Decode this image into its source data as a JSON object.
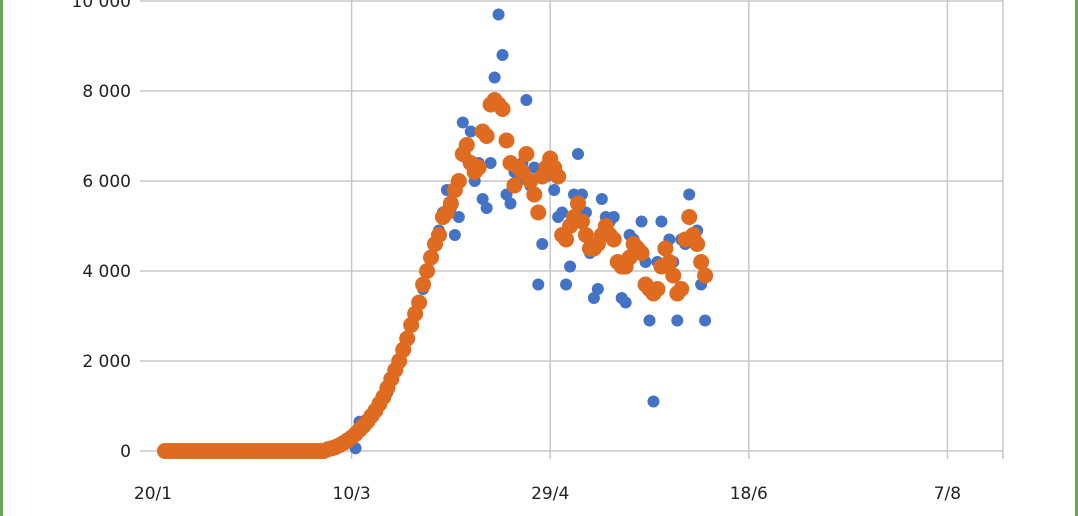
{
  "chart_data": {
    "type": "scatter",
    "x": [
      "23/1",
      "24/1",
      "25/1",
      "26/1",
      "27/1",
      "28/1",
      "29/1",
      "30/1",
      "31/1",
      "1/2",
      "2/2",
      "3/2",
      "4/2",
      "5/2",
      "6/2",
      "7/2",
      "8/2",
      "9/2",
      "10/2",
      "11/2",
      "12/2",
      "13/2",
      "14/2",
      "15/2",
      "16/2",
      "17/2",
      "18/2",
      "19/2",
      "20/2",
      "21/2",
      "22/2",
      "23/2",
      "24/2",
      "25/2",
      "26/2",
      "27/2",
      "28/2",
      "29/2",
      "1/3",
      "2/3",
      "3/3",
      "4/3",
      "5/3",
      "6/3",
      "7/3",
      "8/3",
      "9/3",
      "10/3",
      "11/3",
      "12/3",
      "13/3",
      "14/3",
      "15/3",
      "16/3",
      "17/3",
      "18/3",
      "19/3",
      "20/3",
      "21/3",
      "22/3",
      "23/3",
      "24/3",
      "25/3",
      "26/3",
      "27/3",
      "28/3",
      "29/3",
      "30/3",
      "31/3",
      "1/4",
      "2/4",
      "3/4",
      "4/4",
      "5/4",
      "6/4",
      "7/4",
      "8/4",
      "9/4",
      "10/4",
      "11/4",
      "12/4",
      "13/4",
      "14/4",
      "15/4",
      "16/4",
      "17/4",
      "18/4",
      "19/4",
      "20/4",
      "21/4",
      "22/4",
      "23/4",
      "24/4",
      "25/4",
      "26/4",
      "27/4",
      "28/4",
      "29/4",
      "30/4",
      "1/5",
      "2/5",
      "3/5",
      "4/5",
      "5/5",
      "6/5",
      "7/5",
      "8/5",
      "9/5",
      "10/5",
      "11/5",
      "12/5",
      "13/5",
      "14/5",
      "15/5",
      "16/5",
      "17/5",
      "18/5",
      "19/5",
      "20/5",
      "21/5",
      "22/5",
      "23/5",
      "24/5",
      "25/5",
      "26/5",
      "27/5",
      "28/5",
      "29/5",
      "30/5",
      "31/5",
      "1/6",
      "2/6",
      "3/6",
      "4/6",
      "5/6",
      "6/6",
      "7/6"
    ],
    "series": [
      {
        "color": "#4472c4",
        "values": [
          0,
          0,
          0,
          0,
          0,
          0,
          0,
          0,
          0,
          0,
          0,
          0,
          0,
          0,
          0,
          0,
          0,
          0,
          0,
          0,
          0,
          0,
          0,
          0,
          0,
          0,
          0,
          0,
          0,
          0,
          0,
          0,
          0,
          0,
          0,
          0,
          0,
          0,
          0,
          0,
          0,
          50,
          80,
          100,
          150,
          200,
          250,
          300,
          60,
          650,
          600,
          700,
          800,
          900,
          1000,
          1200,
          1300,
          1600,
          1800,
          2000,
          2200,
          2500,
          2800,
          3100,
          3300,
          3600,
          4000,
          4300,
          4600,
          4900,
          5300,
          5800,
          5400,
          4800,
          5200,
          7300,
          6500,
          7100,
          6000,
          6400,
          5600,
          5400,
          6400,
          8300,
          9700,
          8800,
          5700,
          5500,
          6200,
          6000,
          6400,
          7800,
          5900,
          6300,
          3700,
          4600,
          6100,
          6200,
          5800,
          5200,
          5300,
          3700,
          4100,
          5700,
          6600,
          5700,
          5300,
          4400,
          3400,
          3600,
          5600,
          5200,
          5100,
          5200,
          4200,
          3400,
          3300,
          4800,
          4700,
          4500,
          5100,
          4200,
          2900,
          1100,
          4200,
          5100,
          4500,
          4700,
          4200,
          2900,
          4700,
          4600,
          5700,
          4800,
          4900,
          3700,
          2900
        ]
      },
      {
        "color": "#de6b1f",
        "values": [
          0,
          0,
          0,
          0,
          0,
          0,
          0,
          0,
          0,
          0,
          0,
          0,
          0,
          0,
          0,
          0,
          0,
          0,
          0,
          0,
          0,
          0,
          0,
          0,
          0,
          0,
          0,
          0,
          0,
          0,
          0,
          0,
          0,
          0,
          0,
          0,
          0,
          0,
          0,
          0,
          0,
          40,
          60,
          90,
          130,
          180,
          240,
          300,
          380,
          470,
          560,
          660,
          780,
          900,
          1050,
          1200,
          1400,
          1600,
          1800,
          2000,
          2250,
          2500,
          2800,
          3050,
          3300,
          3700,
          4000,
          4300,
          4600,
          4800,
          5200,
          5300,
          5500,
          5800,
          6000,
          6600,
          6800,
          6400,
          6200,
          6300,
          7100,
          7000,
          7700,
          7800,
          7700,
          7600,
          6900,
          6400,
          5900,
          6300,
          6200,
          6600,
          6000,
          5700,
          5300,
          6100,
          6300,
          6500,
          6300,
          6100,
          4800,
          4700,
          5000,
          5200,
          5500,
          5100,
          4800,
          4500,
          4500,
          4600,
          4800,
          5000,
          4800,
          4700,
          4200,
          4100,
          4100,
          4300,
          4600,
          4500,
          4400,
          3700,
          3600,
          3500,
          3600,
          4100,
          4500,
          4200,
          3900,
          3500,
          3600,
          4700,
          5200,
          4800,
          4600,
          4200,
          3900
        ]
      }
    ],
    "xlim": [
      "20/1",
      "21/8"
    ],
    "xticks": [
      "20/1",
      "10/3",
      "29/4",
      "18/6",
      "7/8"
    ],
    "ylim": [
      0,
      10000
    ],
    "yticks": [
      0,
      {
        "value": 2000,
        "label": "2 000"
      },
      {
        "value": 4000,
        "label": "4 000"
      },
      {
        "value": 6000,
        "label": "6 000"
      },
      {
        "value": 8000,
        "label": "8 000"
      },
      {
        "value": 10000,
        "label": "10 000"
      }
    ],
    "grid": true
  }
}
